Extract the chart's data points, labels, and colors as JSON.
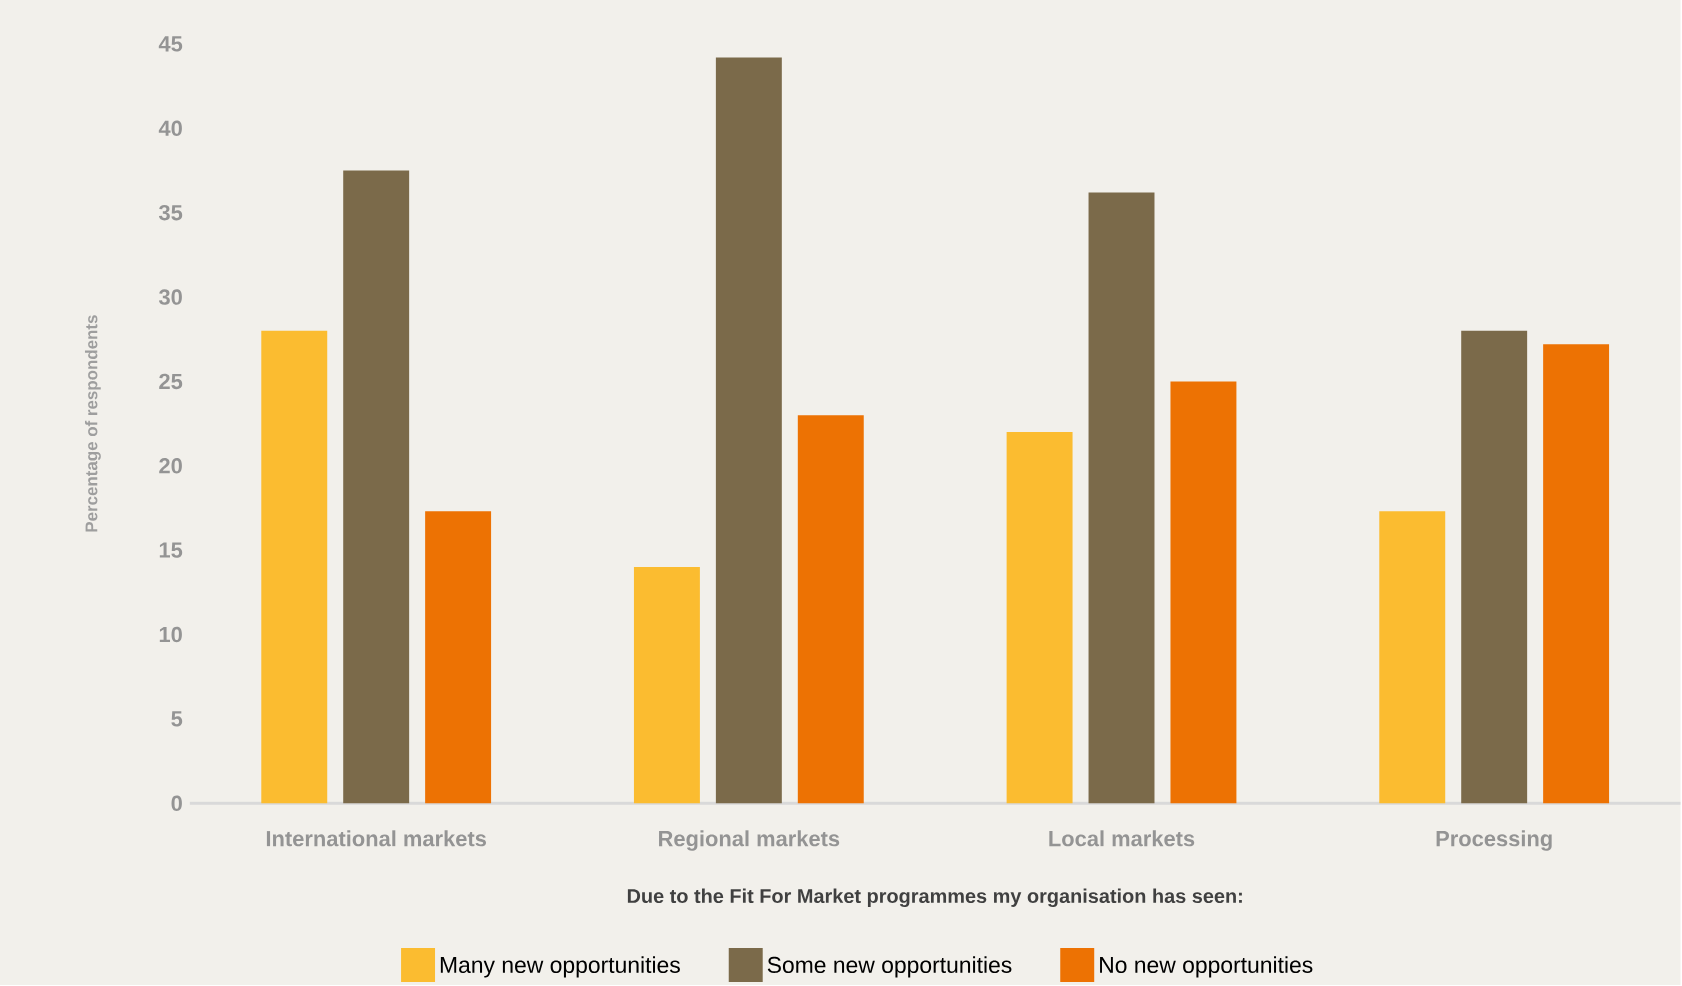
{
  "chart_data": {
    "type": "bar",
    "xlabel": "Due to the Fit For Market programmes my organisation has seen:",
    "ylabel": "Percentage of respondents",
    "categories": [
      "International markets",
      "Regional markets",
      "Local markets",
      "Processing"
    ],
    "series": [
      {
        "name": "Many new opportunities",
        "color": "#fbbc30",
        "values": [
          28,
          14,
          22,
          17.3
        ]
      },
      {
        "name": "Some new opportunities",
        "color": "#7b6a4a",
        "values": [
          37.5,
          44.2,
          36.2,
          28
        ]
      },
      {
        "name": "No new opportunities",
        "color": "#ed7203",
        "values": [
          17.3,
          23,
          25,
          27.2
        ]
      }
    ],
    "ylim": [
      0,
      45
    ],
    "yticks": [
      0,
      5,
      10,
      15,
      20,
      25,
      30,
      35,
      40,
      45
    ],
    "legend": "bottom"
  }
}
